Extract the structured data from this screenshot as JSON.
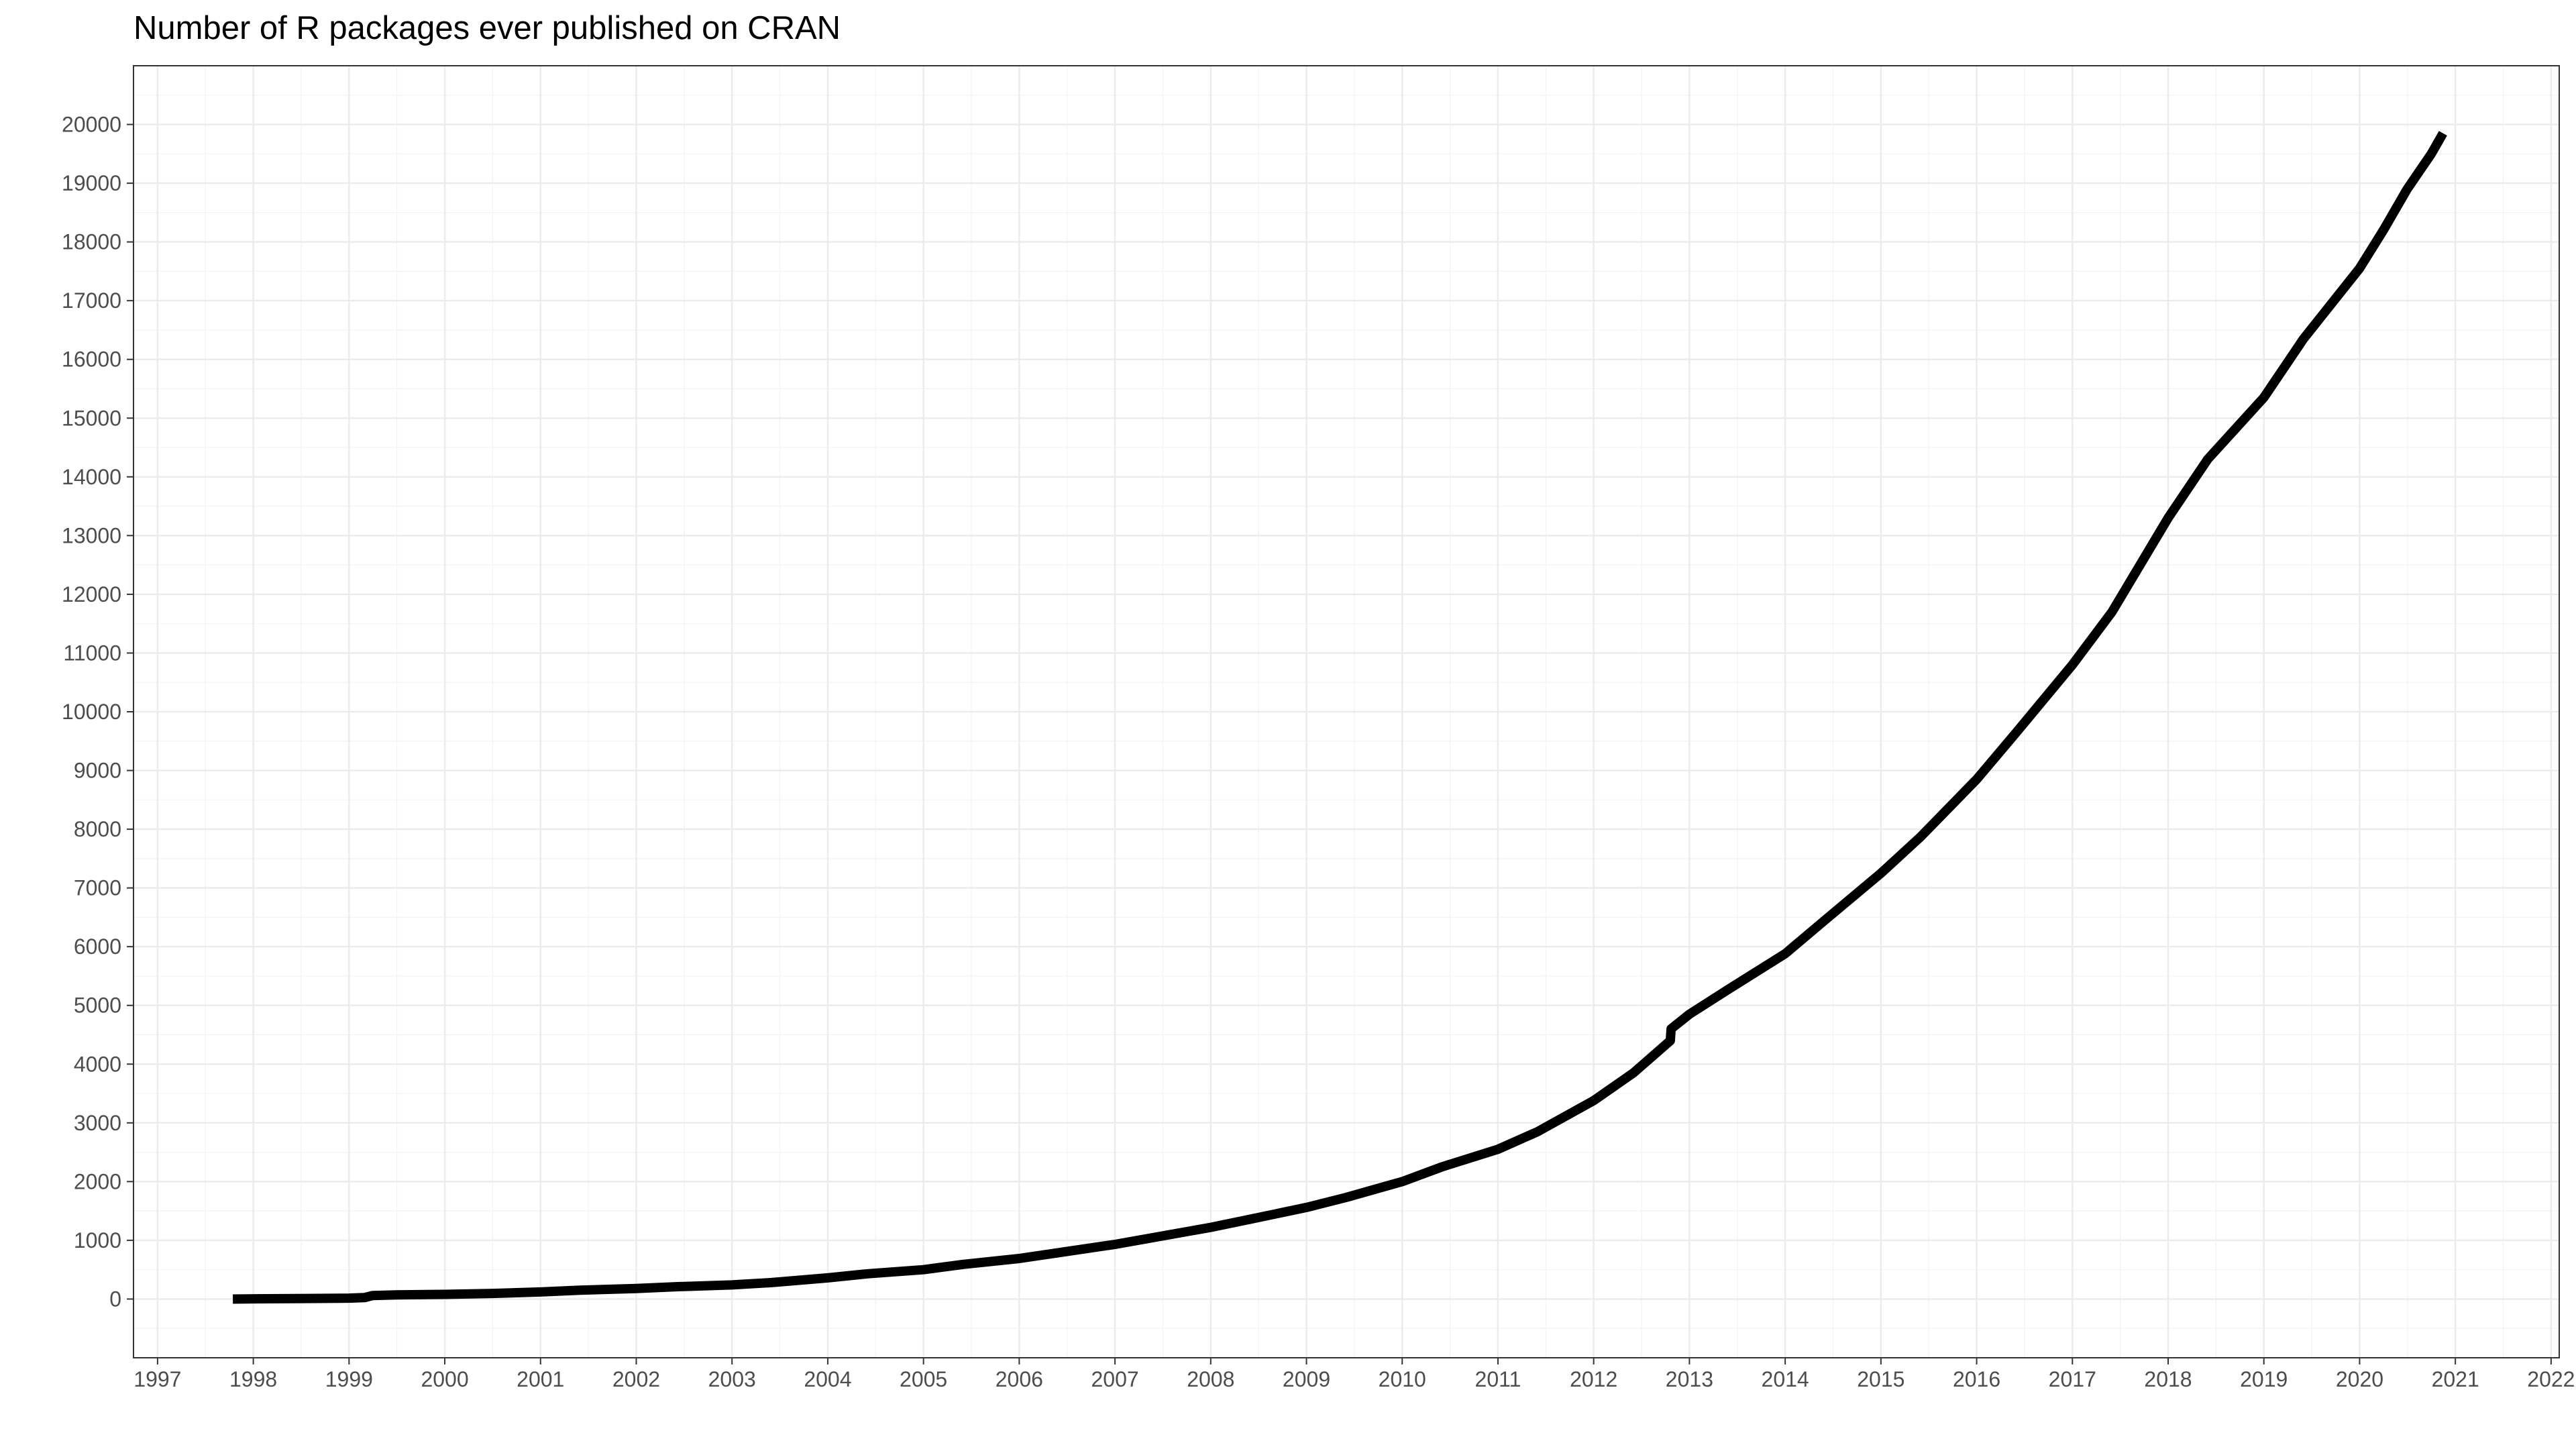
{
  "chart_data": {
    "type": "line",
    "title": "Number of R packages ever published on CRAN",
    "xlabel": "",
    "ylabel": "",
    "x_ticks": [
      "1997",
      "1998",
      "1999",
      "2000",
      "2001",
      "2002",
      "2003",
      "2004",
      "2005",
      "2006",
      "2007",
      "2008",
      "2009",
      "2010",
      "2011",
      "2012",
      "2013",
      "2014",
      "2015",
      "2016",
      "2017",
      "2018",
      "2019",
      "2020",
      "2021",
      "2022"
    ],
    "y_ticks": [
      0,
      1000,
      2000,
      3000,
      4000,
      5000,
      6000,
      7000,
      8000,
      9000,
      10000,
      11000,
      12000,
      13000,
      14000,
      15000,
      16000,
      17000,
      18000,
      19000,
      20000
    ],
    "xlim": [
      "1996-10-01",
      "2022-02-01"
    ],
    "ylim": [
      -1000,
      21000
    ],
    "grid": true,
    "line_color": "#000000",
    "series": [
      {
        "x": [
          "1997-10-15",
          "1998-03-01",
          "1998-08-01",
          "1999-01-01",
          "1999-03-01",
          "1999-04-01",
          "1999-07-01",
          "2000-01-01",
          "2000-07-01",
          "2001-01-01",
          "2001-06-01",
          "2002-01-01",
          "2002-06-01",
          "2003-01-01",
          "2003-06-01",
          "2004-01-01",
          "2004-06-01",
          "2005-01-01",
          "2005-06-01",
          "2006-01-01",
          "2006-06-01",
          "2007-01-01",
          "2007-06-01",
          "2008-01-01",
          "2008-06-01",
          "2009-01-01",
          "2009-06-01",
          "2010-01-01",
          "2010-06-01",
          "2011-01-01",
          "2011-06-01",
          "2012-01-01",
          "2012-06-01",
          "2012-10-20",
          "2012-10-23",
          "2013-01-01",
          "2013-06-01",
          "2014-01-01",
          "2014-06-01",
          "2015-01-01",
          "2015-06-01",
          "2016-01-01",
          "2016-06-01",
          "2017-01-01",
          "2017-06-01",
          "2018-01-01",
          "2018-06-01",
          "2019-01-01",
          "2019-06-01",
          "2020-01-01",
          "2020-04-01",
          "2020-07-01",
          "2020-10-01",
          "2020-11-15"
        ],
        "y": [
          0,
          5,
          10,
          15,
          25,
          60,
          70,
          80,
          95,
          120,
          150,
          180,
          210,
          240,
          280,
          360,
          430,
          500,
          590,
          690,
          790,
          930,
          1050,
          1220,
          1360,
          1560,
          1730,
          2000,
          2250,
          2550,
          2850,
          3380,
          3850,
          4400,
          4600,
          4850,
          5280,
          5880,
          6450,
          7250,
          7870,
          8850,
          9650,
          10800,
          11700,
          13300,
          14300,
          15350,
          16350,
          17550,
          18200,
          18900,
          19500,
          19850
        ]
      }
    ]
  }
}
